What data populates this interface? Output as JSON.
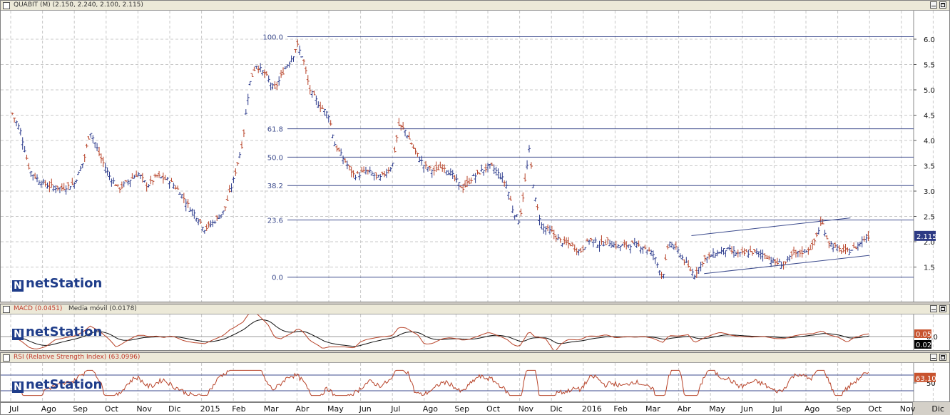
{
  "price_panel": {
    "title": "QUABIT (M) (2.150, 2.240, 2.100, 2.115)",
    "last_label": "2.115",
    "logo_text": "netStation"
  },
  "macd_panel": {
    "title_macd": "MACD (0.0451)",
    "title_ma": "Media móvil (0.0178)",
    "tag_macd": "0.05",
    "tag_ma": "0.02",
    "logo_text": "netStation"
  },
  "rsi_panel": {
    "title": "RSI (Relative Strength Index) (63.0996)",
    "tag": "63.10",
    "logo_text": "netStation"
  },
  "months": [
    "Jul",
    "Ago",
    "Sep",
    "Oct",
    "Nov",
    "Dic",
    "2015",
    "Feb",
    "Mar",
    "Abr",
    "May",
    "Jun",
    "Jul",
    "Ago",
    "Sep",
    "Oct",
    "Nov",
    "Dic",
    "2016",
    "Feb",
    "Mar",
    "Abr",
    "May",
    "Jun",
    "Jul",
    "Ago",
    "Sep",
    "Oct",
    "Nov",
    "Dic"
  ],
  "chart_data": [
    {
      "type": "bar",
      "subtype": "ohlc",
      "series_name": "QUABIT",
      "last": {
        "open": 2.15,
        "high": 2.24,
        "low": 2.1,
        "close": 2.115
      },
      "y_ticks": [
        6.0,
        5.5,
        5.0,
        4.5,
        4.0,
        3.5,
        3.0,
        2.5,
        2.0,
        1.5
      ],
      "y_tick_labels": [
        "6.0",
        "5.5",
        "5.0",
        "4.5",
        "4.0",
        "3.5",
        "3.0",
        "2.5",
        "2.0",
        "1.5"
      ],
      "ylim": [
        1.0,
        6.45
      ],
      "x_months": [
        "Jul",
        "Ago",
        "Sep",
        "Oct",
        "Nov",
        "Dic",
        "2015",
        "Feb",
        "Mar",
        "Abr",
        "May",
        "Jun",
        "Jul",
        "Ago",
        "Sep",
        "Oct",
        "Nov",
        "Dic",
        "2016",
        "Feb",
        "Mar",
        "Abr",
        "May",
        "Jun",
        "Jul",
        "Ago",
        "Sep",
        "Oct",
        "Nov",
        "Dic"
      ],
      "close_path": [
        [
          0,
          4.6
        ],
        [
          0.3,
          4.2
        ],
        [
          0.6,
          3.4
        ],
        [
          0.9,
          3.2
        ],
        [
          1.2,
          3.1
        ],
        [
          1.6,
          3.05
        ],
        [
          2.0,
          3.15
        ],
        [
          2.3,
          3.6
        ],
        [
          2.5,
          4.2
        ],
        [
          2.8,
          3.7
        ],
        [
          3.1,
          3.3
        ],
        [
          3.4,
          3.05
        ],
        [
          3.7,
          3.2
        ],
        [
          4.0,
          3.35
        ],
        [
          4.3,
          3.1
        ],
        [
          4.6,
          3.3
        ],
        [
          5.0,
          3.2
        ],
        [
          5.3,
          3.0
        ],
        [
          5.6,
          2.7
        ],
        [
          5.9,
          2.45
        ],
        [
          6.1,
          2.25
        ],
        [
          6.4,
          2.4
        ],
        [
          6.7,
          2.6
        ],
        [
          7.0,
          3.2
        ],
        [
          7.3,
          4.0
        ],
        [
          7.5,
          5.1
        ],
        [
          7.7,
          5.5
        ],
        [
          8.0,
          5.3
        ],
        [
          8.3,
          5.0
        ],
        [
          8.6,
          5.4
        ],
        [
          8.9,
          5.7
        ],
        [
          9.0,
          5.9
        ],
        [
          9.2,
          5.6
        ],
        [
          9.4,
          5.0
        ],
        [
          9.7,
          4.7
        ],
        [
          10.0,
          4.5
        ],
        [
          10.2,
          3.9
        ],
        [
          10.5,
          3.6
        ],
        [
          10.8,
          3.3
        ],
        [
          11.2,
          3.4
        ],
        [
          11.6,
          3.25
        ],
        [
          12.0,
          3.5
        ],
        [
          12.2,
          4.3
        ],
        [
          12.4,
          4.2
        ],
        [
          12.7,
          3.8
        ],
        [
          13.0,
          3.5
        ],
        [
          13.3,
          3.4
        ],
        [
          13.6,
          3.5
        ],
        [
          13.9,
          3.3
        ],
        [
          14.2,
          3.05
        ],
        [
          14.5,
          3.25
        ],
        [
          14.8,
          3.4
        ],
        [
          15.1,
          3.5
        ],
        [
          15.4,
          3.3
        ],
        [
          15.6,
          3.1
        ],
        [
          15.8,
          2.6
        ],
        [
          16.0,
          2.4
        ],
        [
          16.3,
          3.8
        ],
        [
          16.5,
          2.8
        ],
        [
          16.7,
          2.3
        ],
        [
          17.0,
          2.2
        ],
        [
          17.3,
          2.0
        ],
        [
          17.6,
          1.95
        ],
        [
          17.9,
          1.8
        ],
        [
          18.2,
          2.05
        ],
        [
          18.5,
          1.95
        ],
        [
          18.8,
          2.0
        ],
        [
          19.1,
          1.9
        ],
        [
          19.5,
          1.95
        ],
        [
          19.9,
          1.9
        ],
        [
          20.2,
          1.75
        ],
        [
          20.5,
          1.3
        ],
        [
          20.7,
          2.0
        ],
        [
          21.0,
          1.8
        ],
        [
          21.3,
          1.5
        ],
        [
          21.5,
          1.35
        ],
        [
          21.8,
          1.65
        ],
        [
          22.1,
          1.75
        ],
        [
          22.5,
          1.85
        ],
        [
          22.9,
          1.75
        ],
        [
          23.3,
          1.8
        ],
        [
          23.7,
          1.75
        ],
        [
          24.0,
          1.6
        ],
        [
          24.3,
          1.55
        ],
        [
          24.6,
          1.75
        ],
        [
          24.9,
          1.8
        ],
        [
          25.2,
          1.9
        ],
        [
          25.5,
          2.4
        ],
        [
          25.7,
          2.0
        ],
        [
          26.0,
          1.85
        ],
        [
          26.3,
          1.8
        ],
        [
          26.6,
          1.9
        ],
        [
          26.8,
          2.05
        ],
        [
          27.0,
          2.12
        ]
      ],
      "fibonacci_levels": [
        {
          "label": "100.0",
          "value": 6.05
        },
        {
          "label": "61.8",
          "value": 4.23
        },
        {
          "label": "50.0",
          "value": 3.67
        },
        {
          "label": "38.2",
          "value": 3.11
        },
        {
          "label": "23.6",
          "value": 2.43
        },
        {
          "label": "0.0",
          "value": 1.3
        }
      ],
      "trend_channel": {
        "upper": [
          [
            21.4,
            2.12
          ],
          [
            26.4,
            2.47
          ]
        ],
        "lower": [
          [
            21.8,
            1.37
          ],
          [
            27.0,
            1.73
          ]
        ]
      },
      "last_label": "2.115"
    },
    {
      "type": "line",
      "series_names": [
        "MACD (0.0451)",
        "Media móvil (0.0178)"
      ],
      "last_values": [
        0.05,
        0.02
      ],
      "y_ticks": [
        0.0
      ],
      "y_tick_labels": [
        "0.0"
      ],
      "ylim": [
        -0.25,
        0.35
      ]
    },
    {
      "type": "line",
      "series_names": [
        "RSI (Relative Strength Index) (63.0996)"
      ],
      "last_value": 63.1,
      "y_ticks": [
        50
      ],
      "y_tick_labels": [
        "50"
      ],
      "levels": [
        70,
        30
      ],
      "ylim": [
        15,
        85
      ]
    }
  ]
}
